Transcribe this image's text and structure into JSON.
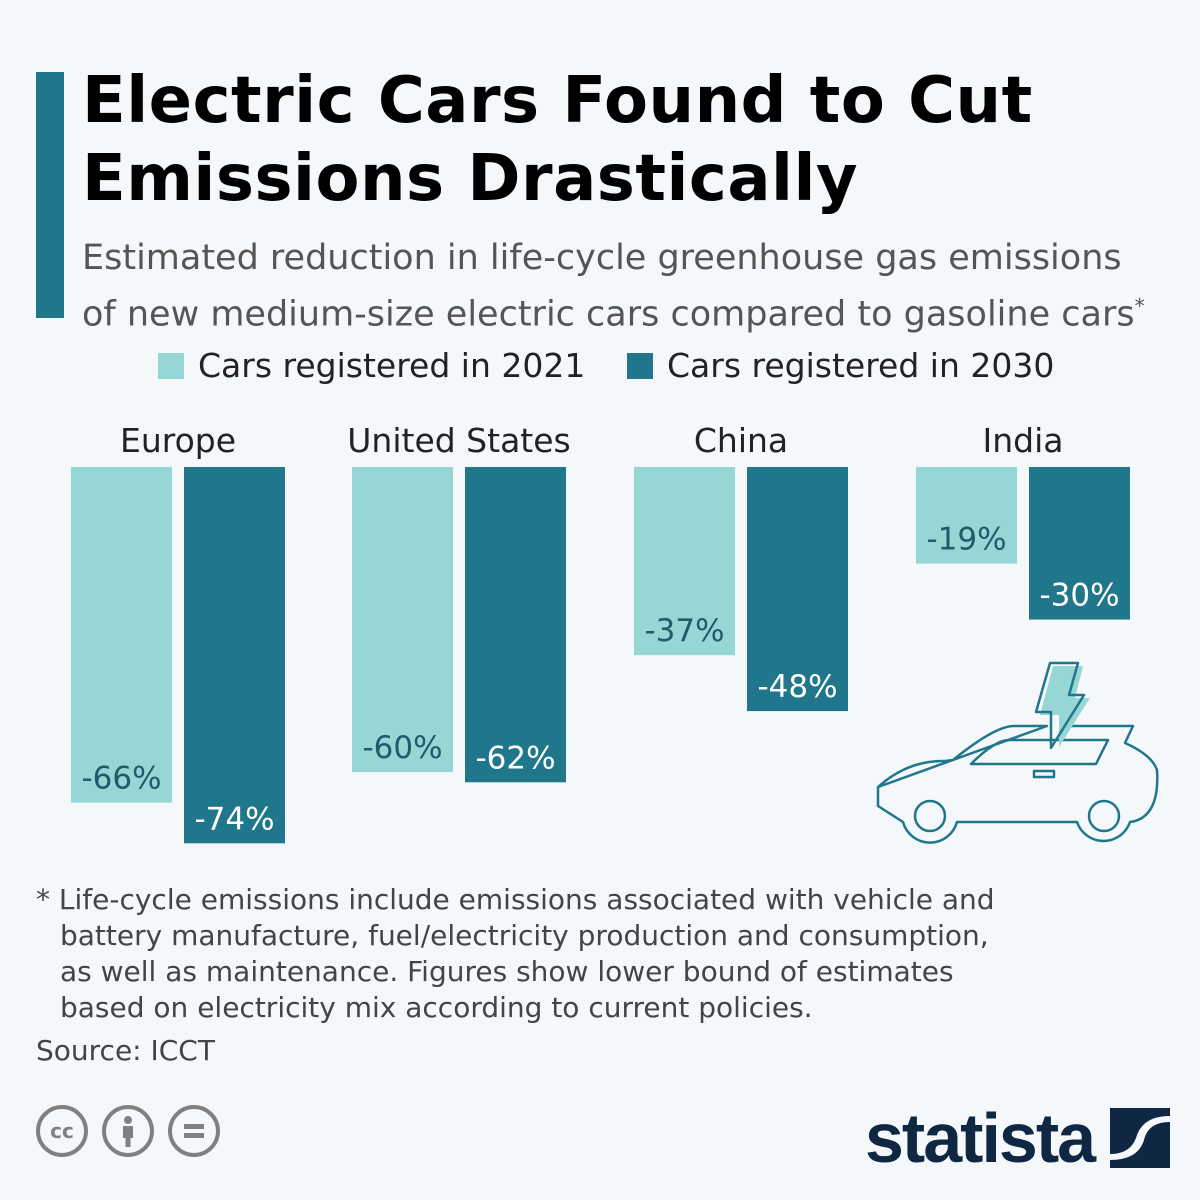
{
  "title_line1": "Electric Cars Found to Cut",
  "title_line2": "Emissions Drastically",
  "subtitle_line1": "Estimated reduction in life-cycle greenhouse gas emissions",
  "subtitle_line2": "of new medium-size electric cars compared to gasoline cars",
  "subtitle_mark": "*",
  "footnote": {
    "line1": "* Life-cycle emissions include emissions associated with vehicle and",
    "line2": "battery manufacture, fuel/electricity production and consumption,",
    "line3": "as well as maintenance. Figures show lower bound of estimates",
    "line4": "based on electricity mix according to current policies."
  },
  "source": "Source: ICCT",
  "brand": "statista",
  "license_icons": [
    "cc-icon",
    "attribution-icon",
    "no-derivatives-icon"
  ],
  "colors": {
    "series_2021": "#96d7d5",
    "series_2030": "#20778b",
    "accent": "#20778b",
    "label": "#1d5c6b"
  },
  "chart_data": {
    "type": "bar",
    "orientation": "vertical-down",
    "categories": [
      "Europe",
      "United States",
      "China",
      "India"
    ],
    "series": [
      {
        "name": "Cars registered in 2021",
        "values": [
          -66,
          -60,
          -37,
          -19
        ]
      },
      {
        "name": "Cars registered in 2030",
        "values": [
          -74,
          -62,
          -48,
          -30
        ]
      }
    ],
    "data_labels": [
      [
        "-66%",
        "-60%",
        "-37%",
        "-19%"
      ],
      [
        "-74%",
        "-62%",
        "-48%",
        "-30%"
      ]
    ],
    "unit": "%",
    "legend": "top",
    "grid": false
  }
}
